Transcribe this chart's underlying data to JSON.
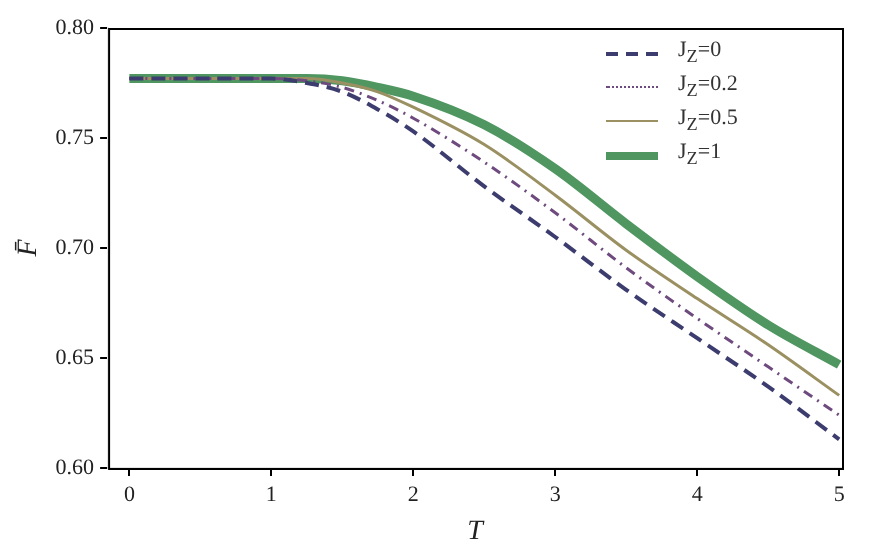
{
  "chart_data": {
    "type": "line",
    "xlabel": "T",
    "ylabel": "F̄",
    "xlim": [
      -0.15,
      5.02
    ],
    "ylim": [
      0.6,
      0.8
    ],
    "xticks": [
      0,
      1,
      2,
      3,
      4,
      5
    ],
    "yticks": [
      {
        "value": 0.6,
        "label": "0.60"
      },
      {
        "value": 0.65,
        "label": "0.65"
      },
      {
        "value": 0.7,
        "label": "0.70"
      },
      {
        "value": 0.75,
        "label": "0.75"
      },
      {
        "value": 0.8,
        "label": "0.80"
      }
    ],
    "grid": false,
    "legend": "top right",
    "marker": "none",
    "series": [
      {
        "name": "J$_{Z}$=0",
        "color": "#3c3c6e",
        "line_style": "dashed",
        "x": [
          0,
          1,
          1.25,
          1.5,
          1.75,
          2,
          2.5,
          3,
          3.5,
          4,
          4.5,
          5
        ],
        "values": [
          0.777,
          0.777,
          0.775,
          0.771,
          0.763,
          0.753,
          0.728,
          0.705,
          0.681,
          0.659,
          0.637,
          0.613
        ]
      },
      {
        "name": "J$_{Z}$=0.2",
        "color": "#6e4a7e",
        "line_style": "dashdot",
        "x": [
          0,
          1,
          1.25,
          1.5,
          1.75,
          2,
          2.5,
          3,
          3.5,
          4,
          4.5,
          5
        ],
        "values": [
          0.777,
          0.777,
          0.776,
          0.773,
          0.767,
          0.759,
          0.739,
          0.716,
          0.691,
          0.668,
          0.646,
          0.624
        ]
      },
      {
        "name": "J$_{Z}$=0.5",
        "color": "#9a9062",
        "line_style": "solid",
        "x": [
          0,
          1,
          1.25,
          1.5,
          1.75,
          2,
          2.5,
          3,
          3.5,
          4,
          4.5,
          5
        ],
        "values": [
          0.777,
          0.777,
          0.777,
          0.775,
          0.771,
          0.764,
          0.747,
          0.724,
          0.699,
          0.677,
          0.656,
          0.633
        ]
      },
      {
        "name": "J$_{Z}$=1",
        "color": "#4f9660",
        "line_style": "solid",
        "x": [
          0,
          1,
          1.25,
          1.5,
          1.75,
          2,
          2.5,
          3,
          3.5,
          4,
          4.5,
          5
        ],
        "values": [
          0.777,
          0.777,
          0.777,
          0.776,
          0.773,
          0.769,
          0.756,
          0.736,
          0.711,
          0.687,
          0.665,
          0.647
        ]
      }
    ]
  }
}
